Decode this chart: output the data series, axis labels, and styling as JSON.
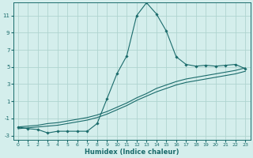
{
  "xlabel": "Humidex (Indice chaleur)",
  "bg_color": "#d4eeec",
  "grid_color": "#afd4d0",
  "line_color": "#1a6b6b",
  "xlim": [
    -0.5,
    23.5
  ],
  "ylim": [
    -3.5,
    12.5
  ],
  "xticks": [
    0,
    1,
    2,
    3,
    4,
    5,
    6,
    7,
    8,
    9,
    10,
    11,
    12,
    13,
    14,
    15,
    16,
    17,
    18,
    19,
    20,
    21,
    22,
    23
  ],
  "yticks": [
    -3,
    -1,
    1,
    3,
    5,
    7,
    9,
    11
  ],
  "curve_main_x": [
    0,
    1,
    2,
    3,
    4,
    5,
    6,
    7,
    8,
    9,
    10,
    11,
    12,
    13,
    14,
    15,
    16,
    17,
    18,
    19,
    20,
    21,
    22,
    23
  ],
  "curve_main_y": [
    -2.0,
    -2.2,
    -2.3,
    -2.7,
    -2.5,
    -2.5,
    -2.5,
    -2.5,
    -1.6,
    1.3,
    4.2,
    6.3,
    11.0,
    12.5,
    11.2,
    9.2,
    6.2,
    5.3,
    5.1,
    5.2,
    5.1,
    5.2,
    5.3,
    4.8
  ],
  "curve_line1_x": [
    0,
    1,
    2,
    3,
    4,
    5,
    6,
    7,
    8,
    9,
    10,
    11,
    12,
    13,
    14,
    15,
    16,
    17,
    18,
    19,
    20,
    21,
    22,
    23
  ],
  "curve_line1_y": [
    -2.0,
    -1.9,
    -1.8,
    -1.6,
    -1.5,
    -1.3,
    -1.1,
    -0.9,
    -0.6,
    -0.2,
    0.3,
    0.8,
    1.4,
    1.9,
    2.5,
    2.9,
    3.3,
    3.6,
    3.8,
    4.0,
    4.2,
    4.4,
    4.6,
    4.9
  ],
  "curve_line2_x": [
    0,
    1,
    2,
    3,
    4,
    5,
    6,
    7,
    8,
    9,
    10,
    11,
    12,
    13,
    14,
    15,
    16,
    17,
    18,
    19,
    20,
    21,
    22,
    23
  ],
  "curve_line2_y": [
    -2.2,
    -2.1,
    -2.0,
    -1.9,
    -1.8,
    -1.6,
    -1.4,
    -1.2,
    -0.9,
    -0.5,
    0.0,
    0.5,
    1.1,
    1.6,
    2.1,
    2.5,
    2.9,
    3.2,
    3.4,
    3.6,
    3.8,
    4.0,
    4.2,
    4.5
  ]
}
